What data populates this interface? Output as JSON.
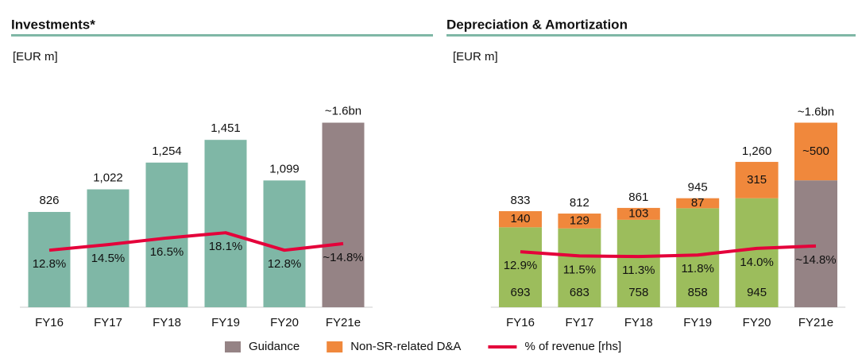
{
  "chart_data": [
    {
      "type": "bar",
      "title": "Investments*",
      "subtitle": "[EUR m]",
      "categories": [
        "FY16",
        "FY17",
        "FY18",
        "FY19",
        "FY20",
        "FY21e"
      ],
      "ylim": [
        0,
        1700
      ],
      "y2lim": [
        -4.5,
        55
      ],
      "series": [
        {
          "color": "#7fb7a6",
          "values": [
            826,
            1022,
            1254,
            1451,
            1099,
            null
          ],
          "value_labels": [
            "826",
            "1,022",
            "1,254",
            "1,451",
            "1,099",
            null
          ]
        },
        {
          "color": "#958385",
          "values": [
            null,
            null,
            null,
            null,
            null,
            1600
          ],
          "value_labels": [
            null,
            null,
            null,
            null,
            null,
            "~1.6bn"
          ]
        },
        {
          "type": "line",
          "axis": "y2",
          "color": "#e4003a",
          "values": [
            12.8,
            14.5,
            16.5,
            18.1,
            12.8,
            14.8
          ],
          "value_labels": [
            "12.8%",
            "14.5%",
            "16.5%",
            "18.1%",
            "12.8%",
            "~14.8%"
          ]
        }
      ]
    },
    {
      "type": "bar",
      "stacked": true,
      "title": "Depreciation & Amortization",
      "subtitle": "[EUR m]",
      "categories": [
        "FY16",
        "FY17",
        "FY18",
        "FY19",
        "FY20",
        "FY21e"
      ],
      "ylim": [
        0,
        1700
      ],
      "y2lim": [
        -5.5,
        59.5
      ],
      "series": [
        {
          "color": "#9cbd5c",
          "values": [
            693,
            683,
            758,
            858,
            945,
            null
          ],
          "value_labels": [
            "693",
            "683",
            "758",
            "858",
            "945",
            null
          ]
        },
        {
          "name": "Guidance",
          "color": "#958385",
          "values": [
            null,
            null,
            null,
            null,
            null,
            1100
          ]
        },
        {
          "name": "Non-SR-related D&A",
          "color": "#f0883c",
          "values": [
            140,
            129,
            103,
            87,
            315,
            500
          ],
          "value_labels": [
            "140",
            "129",
            "103",
            "87",
            "315",
            "~500"
          ]
        },
        {
          "name": "% of revenue [rhs]",
          "type": "line",
          "axis": "y2",
          "color": "#e4003a",
          "values": [
            12.9,
            11.5,
            11.3,
            11.8,
            14.0,
            14.8
          ],
          "value_labels": [
            "12.9%",
            "11.5%",
            "11.3%",
            "11.8%",
            "14.0%",
            "~14.8%"
          ]
        }
      ],
      "totals": [
        833,
        812,
        861,
        945,
        1260,
        1600
      ],
      "total_labels": [
        "833",
        "812",
        "861",
        "945",
        "1,260",
        "~1.6bn"
      ]
    }
  ]
}
